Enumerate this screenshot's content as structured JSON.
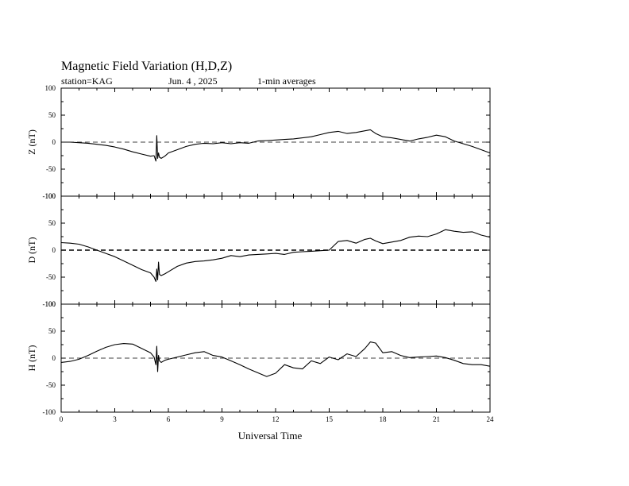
{
  "header": {
    "title": "Magnetic Field Variation (H,D,Z)",
    "station": "station=KAG",
    "date": "Jun. 4  , 2025",
    "averaging": "1-min averages"
  },
  "chart_data": {
    "type": "line",
    "xlabel": "Universal Time",
    "xlim": [
      0,
      24
    ],
    "xticks": [
      "0",
      "3",
      "6",
      "9",
      "12",
      "15",
      "18",
      "21",
      "24"
    ],
    "yticks": [
      "100",
      "50",
      "0",
      "-50",
      "-100"
    ],
    "panels": [
      {
        "ylabel": "Z (nT)",
        "ylim": [
          -100,
          100
        ],
        "series": [
          {
            "x": [
              0,
              0.5,
              1,
              1.5,
              2,
              2.5,
              3,
              3.5,
              4,
              4.5,
              5,
              5.2,
              5.3,
              5.35,
              5.4,
              5.45,
              5.5,
              5.6,
              5.8,
              6,
              6.5,
              7,
              7.5,
              8,
              8.5,
              9,
              9.5,
              10,
              10.5,
              11,
              11.5,
              12,
              12.5,
              13,
              13.5,
              14,
              14.5,
              15,
              15.5,
              16,
              16.5,
              17,
              17.3,
              17.6,
              18,
              18.5,
              19,
              19.5,
              20,
              20.5,
              21,
              21.5,
              22,
              22.5,
              23,
              23.5,
              24
            ],
            "y": [
              0,
              0,
              -1,
              -2,
              -4,
              -6,
              -9,
              -13,
              -18,
              -22,
              -26,
              -25,
              -35,
              12,
              -30,
              -20,
              -28,
              -30,
              -26,
              -20,
              -14,
              -8,
              -4,
              -2,
              -3,
              -1,
              -3,
              -1,
              -2,
              2,
              3,
              4,
              5,
              6,
              8,
              10,
              14,
              18,
              20,
              16,
              18,
              21,
              23,
              16,
              10,
              8,
              5,
              2,
              6,
              9,
              13,
              10,
              2,
              -3,
              -8,
              -14,
              -20
            ]
          }
        ]
      },
      {
        "ylabel": "D (nT)",
        "ylim": [
          -100,
          100
        ],
        "series": [
          {
            "x": [
              0,
              0.5,
              1,
              1.5,
              2,
              2.5,
              3,
              3.5,
              4,
              4.5,
              5,
              5.2,
              5.3,
              5.35,
              5.4,
              5.45,
              5.5,
              5.6,
              5.8,
              6,
              6.5,
              7,
              7.5,
              8,
              8.5,
              9,
              9.5,
              10,
              10.5,
              11,
              11.5,
              12,
              12.5,
              13,
              13.5,
              14,
              14.5,
              15,
              15.5,
              16,
              16.5,
              17,
              17.3,
              17.6,
              18,
              18.5,
              19,
              19.5,
              20,
              20.5,
              21,
              21.5,
              22,
              22.5,
              23,
              23.5,
              24
            ],
            "y": [
              14,
              13,
              11,
              6,
              0,
              -6,
              -12,
              -20,
              -28,
              -36,
              -42,
              -50,
              -58,
              -35,
              -55,
              -22,
              -45,
              -47,
              -44,
              -40,
              -30,
              -24,
              -21,
              -20,
              -18,
              -15,
              -10,
              -12,
              -9,
              -8,
              -7,
              -6,
              -8,
              -4,
              -3,
              -2,
              -1,
              0,
              16,
              18,
              13,
              20,
              22,
              17,
              12,
              15,
              18,
              24,
              26,
              25,
              30,
              38,
              35,
              33,
              34,
              28,
              24
            ]
          }
        ]
      },
      {
        "ylabel": "H (nT)",
        "ylim": [
          -100,
          100
        ],
        "series": [
          {
            "x": [
              0,
              0.5,
              1,
              1.5,
              2,
              2.5,
              3,
              3.5,
              4,
              4.5,
              5,
              5.2,
              5.3,
              5.35,
              5.4,
              5.45,
              5.5,
              5.6,
              5.8,
              6,
              6.5,
              7,
              7.5,
              8,
              8.5,
              9,
              9.5,
              10,
              10.5,
              11,
              11.5,
              12,
              12.5,
              13,
              13.5,
              14,
              14.5,
              15,
              15.5,
              16,
              16.5,
              17,
              17.3,
              17.6,
              18,
              18.5,
              19,
              19.5,
              20,
              20.5,
              21,
              21.5,
              22,
              22.5,
              23,
              23.5,
              24
            ],
            "y": [
              -8,
              -6,
              -2,
              5,
              13,
              20,
              25,
              27,
              26,
              18,
              10,
              2,
              -12,
              22,
              -25,
              5,
              -5,
              -8,
              -4,
              -2,
              2,
              6,
              10,
              12,
              5,
              2,
              -5,
              -12,
              -20,
              -27,
              -34,
              -28,
              -12,
              -18,
              -20,
              -5,
              -10,
              2,
              -3,
              8,
              3,
              18,
              30,
              28,
              10,
              12,
              5,
              1,
              2,
              3,
              4,
              1,
              -4,
              -10,
              -12,
              -12,
              -15
            ]
          }
        ]
      }
    ]
  }
}
